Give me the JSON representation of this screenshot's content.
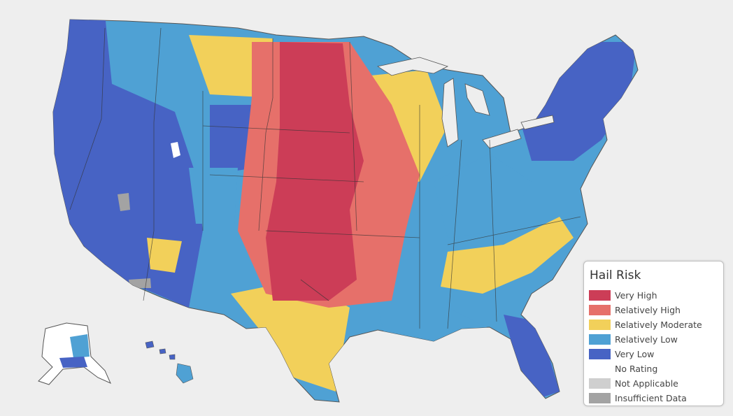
{
  "legend": {
    "title": "Hail Risk",
    "items": [
      {
        "label": "Very High",
        "color": "#cc3d57"
      },
      {
        "label": "Relatively High",
        "color": "#e6706a"
      },
      {
        "label": "Relatively Moderate",
        "color": "#f2d05a"
      },
      {
        "label": "Relatively Low",
        "color": "#4fa1d4"
      },
      {
        "label": "Very Low",
        "color": "#4763c4"
      },
      {
        "label": "No Rating",
        "color": "#ffffff"
      },
      {
        "label": "Not Applicable",
        "color": "#cfcfcf"
      },
      {
        "label": "Insufficient Data",
        "color": "#a3a3a3"
      }
    ]
  }
}
